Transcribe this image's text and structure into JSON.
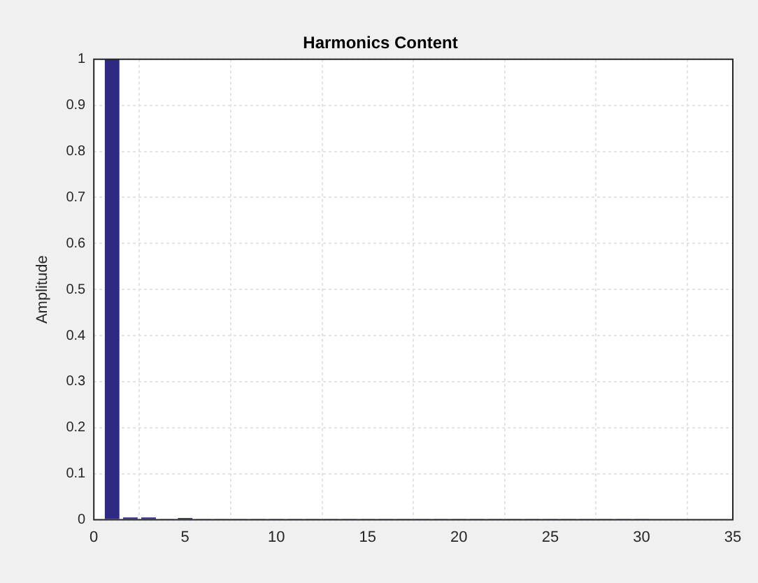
{
  "chart_data": {
    "type": "bar",
    "title": "Harmonics Content",
    "ylabel": "Amplitude",
    "x": [
      1,
      2,
      3,
      4,
      5,
      6,
      7,
      8,
      9,
      10,
      11,
      12,
      13,
      14,
      15,
      16,
      17,
      18,
      19,
      20,
      21,
      22,
      23,
      24,
      25,
      26,
      27,
      28,
      29,
      30
    ],
    "values": [
      1,
      0.005,
      0.005,
      0.002,
      0.004,
      0.002,
      0.002,
      0.002,
      0.002,
      0.002,
      0.002,
      0.002,
      0.002,
      0.002,
      0.002,
      0.002,
      0.002,
      0.002,
      0.002,
      0.002,
      0.002,
      0.002,
      0.002,
      0.002,
      0.002,
      0.002,
      0.002,
      0.002,
      0.002,
      0.002
    ],
    "color": "#2e2a84",
    "xlim": [
      0,
      35
    ],
    "xticks": [
      0,
      5,
      10,
      15,
      20,
      25,
      30,
      35
    ],
    "ylim": [
      0,
      1
    ],
    "yticks": [
      0,
      0.1,
      0.2,
      0.3,
      0.4,
      0.5,
      0.6,
      0.7,
      0.8,
      0.9,
      1
    ],
    "grid": true
  }
}
